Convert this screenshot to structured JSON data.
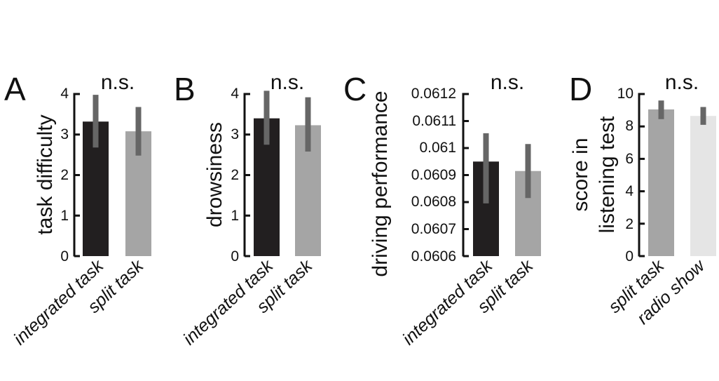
{
  "chart_data": [
    {
      "type": "bar",
      "panel": "A",
      "annotation": "n.s.",
      "ylabel": "task difficulty",
      "xlabel": "",
      "ylim": [
        0,
        4
      ],
      "yticks": [
        0,
        1,
        2,
        3,
        4
      ],
      "ytick_labels": [
        "0",
        "1",
        "2",
        "3",
        "4"
      ],
      "categories": [
        "integrated task",
        "split task"
      ],
      "values": [
        3.32,
        3.08
      ],
      "error_low": [
        2.68,
        2.48
      ],
      "error_high": [
        3.98,
        3.68
      ],
      "bar_colors": [
        "#221f20",
        "#a5a5a5"
      ],
      "error_color": "#666666"
    },
    {
      "type": "bar",
      "panel": "B",
      "annotation": "n.s.",
      "ylabel": "drowsiness",
      "xlabel": "",
      "ylim": [
        0,
        4
      ],
      "yticks": [
        0,
        1,
        2,
        3,
        4
      ],
      "ytick_labels": [
        "0",
        "1",
        "2",
        "3",
        "4"
      ],
      "categories": [
        "integrated task",
        "split task"
      ],
      "values": [
        3.4,
        3.23
      ],
      "error_low": [
        2.75,
        2.58
      ],
      "error_high": [
        4.08,
        3.92
      ],
      "bar_colors": [
        "#221f20",
        "#a5a5a5"
      ],
      "error_color": "#666666"
    },
    {
      "type": "bar",
      "panel": "C",
      "annotation": "n.s.",
      "ylabel": "driving performance",
      "xlabel": "",
      "ylim": [
        0.0606,
        0.0612
      ],
      "yticks": [
        0.0606,
        0.0607,
        0.0608,
        0.0609,
        0.061,
        0.0611,
        0.0612
      ],
      "ytick_labels": [
        "0.0606",
        "0.0607",
        "0.0608",
        "0.0609",
        "0.061",
        "0.0611",
        "0.0612"
      ],
      "categories": [
        "integrated task",
        "split task"
      ],
      "values": [
        0.06095,
        0.060915
      ],
      "error_low": [
        0.060795,
        0.060815
      ],
      "error_high": [
        0.061055,
        0.061015
      ],
      "bar_colors": [
        "#221f20",
        "#a5a5a5"
      ],
      "error_color": "#666666"
    },
    {
      "type": "bar",
      "panel": "D",
      "annotation": "n.s.",
      "ylabel": [
        "score in",
        "listening test"
      ],
      "xlabel": "",
      "ylim": [
        0,
        10
      ],
      "yticks": [
        0,
        2,
        4,
        6,
        8,
        10
      ],
      "ytick_labels": [
        "0",
        "2",
        "4",
        "6",
        "8",
        "10"
      ],
      "categories": [
        "split task",
        "radio show"
      ],
      "values": [
        9.05,
        8.65
      ],
      "error_low": [
        8.45,
        8.1
      ],
      "error_high": [
        9.6,
        9.2
      ],
      "bar_colors": [
        "#a5a5a5",
        "#e5e5e5"
      ],
      "error_color": "#666666"
    }
  ]
}
